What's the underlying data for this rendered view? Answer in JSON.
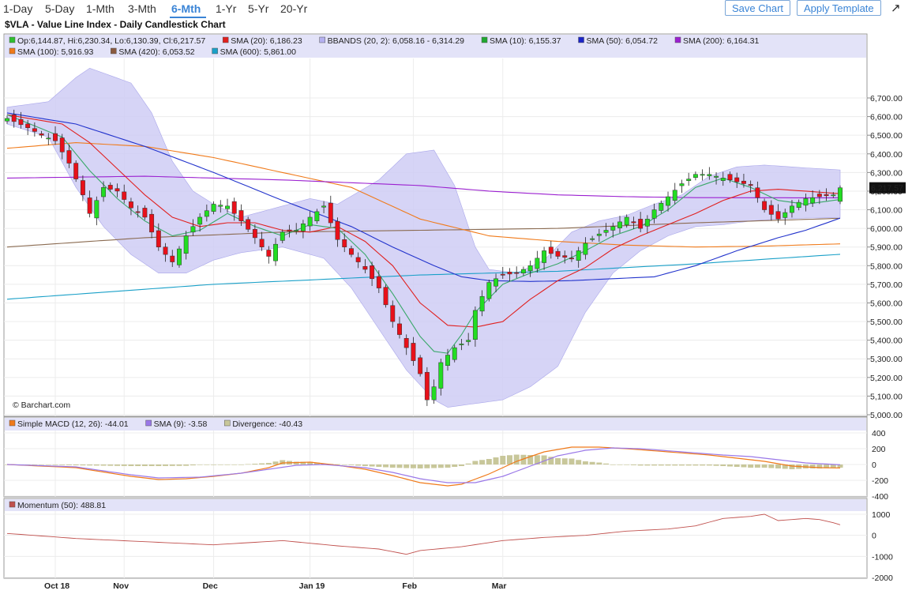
{
  "nav": {
    "periods": [
      "1-Day",
      "5-Day",
      "1-Mth",
      "3-Mth",
      "6-Mth",
      "1-Yr",
      "5-Yr",
      "20-Yr"
    ],
    "active": "6-Mth",
    "save_label": "Save Chart",
    "template_label": "Apply Template",
    "expand_glyph": "↗"
  },
  "title": "$VLA - Value Line Index - Daily Candlestick Chart",
  "copyright": "© Barchart.com",
  "legend": {
    "row1": [
      {
        "text": "Op:6,144.87, Hi:6,230.34, Lo:6,130.39, Cl:6,217.57",
        "color": "#2fbf2f"
      },
      {
        "text": "SMA (20): 6,186.23",
        "color": "#e0201f"
      },
      {
        "text": "BBANDS (20, 2): 6,058.16 - 6,314.29",
        "color": "#b4b0f0"
      },
      {
        "text": "SMA (10): 6,155.37",
        "color": "#20a830"
      },
      {
        "text": "SMA (50): 6,054.72",
        "color": "#1b24c8"
      },
      {
        "text": "SMA (200): 6,164.31",
        "color": "#9b20d0"
      }
    ],
    "row2": [
      {
        "text": "SMA (100): 5,916.93",
        "color": "#f07a1a"
      },
      {
        "text": "SMA (420): 6,053.52",
        "color": "#8a5a40"
      },
      {
        "text": "SMA (600): 5,861.00",
        "color": "#1aa0c8"
      }
    ]
  },
  "macd_legend": [
    {
      "text": "Simple MACD (12, 26): -44.01",
      "color": "#f07a1a"
    },
    {
      "text": "SMA (9): -3.58",
      "color": "#9a78e8"
    },
    {
      "text": "Divergence: -40.43",
      "color": "#c8c79a"
    }
  ],
  "momentum_legend": [
    {
      "text": "Momentum (50): 488.81",
      "color": "#c0504d"
    }
  ],
  "last_price_tag": "6,217.57",
  "colors": {
    "up": "#22dd22",
    "down": "#e8101a",
    "bband_fill": "#cfcdf5",
    "sma20": "#e0201f",
    "sma10": "#3aa86a",
    "sma50": "#2233cc",
    "sma200": "#9b20d0",
    "sma100": "#f07a1a",
    "sma420": "#8a6a50",
    "sma600": "#1aa0c8",
    "macd": "#f07a1a",
    "macd_signal": "#9a78e8",
    "divergence": "#c8c79a",
    "momentum": "#c0504d"
  },
  "chart_data": {
    "type": "candlestick",
    "price_axis": {
      "ticks": [
        5000,
        5100,
        5200,
        5300,
        5400,
        5500,
        5600,
        5700,
        5800,
        5900,
        6000,
        6100,
        6200,
        6300,
        6400,
        6500,
        6600,
        6700
      ],
      "ylim": [
        5000,
        6700
      ]
    },
    "macd_axis": {
      "ticks": [
        400,
        200,
        0,
        -200,
        -400
      ],
      "ylim": [
        -400,
        400
      ]
    },
    "momentum_axis": {
      "ticks": [
        1000,
        0,
        -1000,
        -2000
      ],
      "ylim": [
        -2000,
        1000
      ]
    },
    "month_labels": [
      {
        "label": "Oct 18",
        "index": 7
      },
      {
        "label": "Nov",
        "index": 17
      },
      {
        "label": "Dec",
        "index": 30
      },
      {
        "label": "Jan 19",
        "index": 44
      },
      {
        "label": "Feb",
        "index": 59
      },
      {
        "label": "Mar",
        "index": 72
      }
    ],
    "anchors": {
      "close": [
        [
          0,
          6590
        ],
        [
          3,
          6540
        ],
        [
          5,
          6500
        ],
        [
          7,
          6470
        ],
        [
          9,
          6350
        ],
        [
          11,
          6180
        ],
        [
          12,
          6080
        ],
        [
          14,
          6220
        ],
        [
          16,
          6200
        ],
        [
          18,
          6110
        ],
        [
          20,
          6060
        ],
        [
          22,
          5900
        ],
        [
          24,
          5820
        ],
        [
          26,
          5960
        ],
        [
          28,
          6060
        ],
        [
          30,
          6130
        ],
        [
          32,
          6120
        ],
        [
          34,
          6040
        ],
        [
          36,
          5950
        ],
        [
          38,
          5850
        ],
        [
          40,
          5980
        ],
        [
          42,
          5990
        ],
        [
          44,
          6060
        ],
        [
          46,
          6120
        ],
        [
          48,
          5940
        ],
        [
          50,
          5860
        ],
        [
          52,
          5780
        ],
        [
          54,
          5680
        ],
        [
          56,
          5500
        ],
        [
          58,
          5360
        ],
        [
          60,
          5220
        ],
        [
          61,
          5080
        ],
        [
          62,
          5150
        ],
        [
          63,
          5280
        ],
        [
          65,
          5360
        ],
        [
          67,
          5400
        ],
        [
          68,
          5560
        ],
        [
          70,
          5710
        ],
        [
          72,
          5750
        ],
        [
          74,
          5760
        ],
        [
          76,
          5800
        ],
        [
          78,
          5880
        ],
        [
          80,
          5850
        ],
        [
          82,
          5840
        ],
        [
          84,
          5920
        ],
        [
          86,
          5970
        ],
        [
          88,
          6010
        ],
        [
          90,
          6060
        ],
        [
          92,
          6000
        ],
        [
          94,
          6100
        ],
        [
          96,
          6170
        ],
        [
          98,
          6240
        ],
        [
          100,
          6290
        ],
        [
          102,
          6290
        ],
        [
          104,
          6270
        ],
        [
          106,
          6250
        ],
        [
          108,
          6230
        ],
        [
          110,
          6100
        ],
        [
          112,
          6050
        ],
        [
          114,
          6120
        ],
        [
          116,
          6160
        ],
        [
          118,
          6170
        ],
        [
          120,
          6180
        ],
        [
          121,
          6218
        ]
      ],
      "sma10": [
        [
          0,
          6610
        ],
        [
          8,
          6490
        ],
        [
          12,
          6310
        ],
        [
          16,
          6160
        ],
        [
          20,
          6040
        ],
        [
          24,
          5960
        ],
        [
          28,
          5990
        ],
        [
          32,
          6080
        ],
        [
          36,
          6010
        ],
        [
          40,
          5960
        ],
        [
          44,
          6020
        ],
        [
          48,
          6000
        ],
        [
          52,
          5860
        ],
        [
          56,
          5650
        ],
        [
          60,
          5420
        ],
        [
          62,
          5340
        ],
        [
          64,
          5330
        ],
        [
          66,
          5430
        ],
        [
          68,
          5550
        ],
        [
          72,
          5700
        ],
        [
          76,
          5760
        ],
        [
          80,
          5810
        ],
        [
          84,
          5880
        ],
        [
          88,
          5960
        ],
        [
          92,
          6010
        ],
        [
          96,
          6100
        ],
        [
          100,
          6220
        ],
        [
          104,
          6270
        ],
        [
          108,
          6220
        ],
        [
          112,
          6150
        ],
        [
          116,
          6130
        ],
        [
          120,
          6150
        ],
        [
          121,
          6155
        ]
      ],
      "sma20": [
        [
          0,
          6610
        ],
        [
          8,
          6560
        ],
        [
          12,
          6460
        ],
        [
          16,
          6320
        ],
        [
          20,
          6180
        ],
        [
          24,
          6060
        ],
        [
          28,
          6010
        ],
        [
          32,
          6030
        ],
        [
          36,
          6030
        ],
        [
          40,
          5990
        ],
        [
          44,
          5980
        ],
        [
          48,
          6010
        ],
        [
          52,
          5930
        ],
        [
          56,
          5800
        ],
        [
          60,
          5600
        ],
        [
          64,
          5480
        ],
        [
          68,
          5470
        ],
        [
          72,
          5500
        ],
        [
          76,
          5620
        ],
        [
          80,
          5720
        ],
        [
          84,
          5790
        ],
        [
          88,
          5890
        ],
        [
          92,
          5960
        ],
        [
          96,
          6020
        ],
        [
          100,
          6080
        ],
        [
          104,
          6150
        ],
        [
          108,
          6200
        ],
        [
          112,
          6210
        ],
        [
          116,
          6200
        ],
        [
          121,
          6186
        ]
      ],
      "sma50": [
        [
          0,
          6620
        ],
        [
          10,
          6560
        ],
        [
          20,
          6440
        ],
        [
          30,
          6300
        ],
        [
          40,
          6150
        ],
        [
          50,
          6010
        ],
        [
          56,
          5900
        ],
        [
          62,
          5800
        ],
        [
          66,
          5740
        ],
        [
          70,
          5720
        ],
        [
          76,
          5715
        ],
        [
          82,
          5720
        ],
        [
          88,
          5730
        ],
        [
          94,
          5740
        ],
        [
          100,
          5800
        ],
        [
          106,
          5880
        ],
        [
          112,
          5950
        ],
        [
          116,
          5990
        ],
        [
          121,
          6055
        ]
      ],
      "sma100": [
        [
          0,
          6430
        ],
        [
          10,
          6460
        ],
        [
          20,
          6440
        ],
        [
          30,
          6380
        ],
        [
          40,
          6300
        ],
        [
          50,
          6220
        ],
        [
          60,
          6050
        ],
        [
          70,
          5960
        ],
        [
          80,
          5930
        ],
        [
          90,
          5910
        ],
        [
          100,
          5900
        ],
        [
          110,
          5905
        ],
        [
          121,
          5917
        ]
      ],
      "sma200": [
        [
          0,
          6270
        ],
        [
          20,
          6280
        ],
        [
          40,
          6260
        ],
        [
          60,
          6230
        ],
        [
          70,
          6200
        ],
        [
          80,
          6180
        ],
        [
          90,
          6170
        ],
        [
          100,
          6165
        ],
        [
          121,
          6164
        ]
      ],
      "sma420": [
        [
          0,
          5900
        ],
        [
          20,
          5950
        ],
        [
          40,
          5980
        ],
        [
          60,
          5990
        ],
        [
          80,
          6000
        ],
        [
          100,
          6030
        ],
        [
          121,
          6054
        ]
      ],
      "sma600": [
        [
          0,
          5620
        ],
        [
          30,
          5700
        ],
        [
          60,
          5750
        ],
        [
          80,
          5770
        ],
        [
          100,
          5810
        ],
        [
          121,
          5861
        ]
      ],
      "bb_upper": [
        [
          0,
          6650
        ],
        [
          6,
          6680
        ],
        [
          10,
          6810
        ],
        [
          12,
          6860
        ],
        [
          15,
          6820
        ],
        [
          18,
          6780
        ],
        [
          21,
          6620
        ],
        [
          24,
          6360
        ],
        [
          27,
          6200
        ],
        [
          30,
          6130
        ],
        [
          34,
          6060
        ],
        [
          40,
          6120
        ],
        [
          44,
          6160
        ],
        [
          48,
          6130
        ],
        [
          54,
          6260
        ],
        [
          58,
          6400
        ],
        [
          62,
          6420
        ],
        [
          65,
          6230
        ],
        [
          68,
          5900
        ],
        [
          70,
          5780
        ],
        [
          74,
          5760
        ],
        [
          78,
          5830
        ],
        [
          82,
          5980
        ],
        [
          86,
          6040
        ],
        [
          90,
          6070
        ],
        [
          94,
          6130
        ],
        [
          98,
          6180
        ],
        [
          102,
          6280
        ],
        [
          106,
          6330
        ],
        [
          110,
          6340
        ],
        [
          114,
          6330
        ],
        [
          118,
          6320
        ],
        [
          121,
          6314
        ]
      ],
      "bb_lower": [
        [
          0,
          6560
        ],
        [
          6,
          6490
        ],
        [
          10,
          6220
        ],
        [
          14,
          6010
        ],
        [
          18,
          5860
        ],
        [
          22,
          5760
        ],
        [
          26,
          5760
        ],
        [
          30,
          5830
        ],
        [
          34,
          5870
        ],
        [
          40,
          5900
        ],
        [
          46,
          5840
        ],
        [
          50,
          5680
        ],
        [
          54,
          5460
        ],
        [
          58,
          5240
        ],
        [
          62,
          5080
        ],
        [
          64,
          5040
        ],
        [
          68,
          5060
        ],
        [
          72,
          5080
        ],
        [
          76,
          5150
        ],
        [
          80,
          5260
        ],
        [
          84,
          5550
        ],
        [
          88,
          5760
        ],
        [
          92,
          5880
        ],
        [
          96,
          5960
        ],
        [
          100,
          6010
        ],
        [
          104,
          6020
        ],
        [
          108,
          6040
        ],
        [
          112,
          6050
        ],
        [
          116,
          6055
        ],
        [
          121,
          6058
        ]
      ],
      "macd": [
        [
          0,
          0
        ],
        [
          10,
          -40
        ],
        [
          18,
          -150
        ],
        [
          22,
          -190
        ],
        [
          26,
          -180
        ],
        [
          30,
          -150
        ],
        [
          34,
          -110
        ],
        [
          38,
          -40
        ],
        [
          40,
          20
        ],
        [
          44,
          30
        ],
        [
          48,
          -10
        ],
        [
          52,
          -60
        ],
        [
          56,
          -140
        ],
        [
          60,
          -230
        ],
        [
          64,
          -270
        ],
        [
          66,
          -250
        ],
        [
          70,
          -120
        ],
        [
          74,
          40
        ],
        [
          78,
          160
        ],
        [
          82,
          220
        ],
        [
          86,
          220
        ],
        [
          90,
          200
        ],
        [
          96,
          160
        ],
        [
          102,
          120
        ],
        [
          106,
          80
        ],
        [
          110,
          40
        ],
        [
          114,
          -20
        ],
        [
          118,
          -40
        ],
        [
          121,
          -44
        ]
      ],
      "macd_signal": [
        [
          0,
          0
        ],
        [
          10,
          -30
        ],
        [
          18,
          -130
        ],
        [
          22,
          -170
        ],
        [
          28,
          -160
        ],
        [
          34,
          -110
        ],
        [
          38,
          -60
        ],
        [
          42,
          -10
        ],
        [
          46,
          0
        ],
        [
          52,
          -40
        ],
        [
          56,
          -100
        ],
        [
          60,
          -180
        ],
        [
          64,
          -230
        ],
        [
          68,
          -230
        ],
        [
          72,
          -150
        ],
        [
          76,
          -20
        ],
        [
          80,
          110
        ],
        [
          84,
          180
        ],
        [
          88,
          210
        ],
        [
          92,
          200
        ],
        [
          98,
          160
        ],
        [
          104,
          120
        ],
        [
          108,
          100
        ],
        [
          112,
          60
        ],
        [
          116,
          20
        ],
        [
          121,
          -4
        ]
      ],
      "momentum": [
        [
          0,
          90
        ],
        [
          10,
          -150
        ],
        [
          20,
          -300
        ],
        [
          30,
          -450
        ],
        [
          40,
          -250
        ],
        [
          48,
          -500
        ],
        [
          54,
          -650
        ],
        [
          58,
          -900
        ],
        [
          60,
          -720
        ],
        [
          66,
          -540
        ],
        [
          72,
          -250
        ],
        [
          78,
          -100
        ],
        [
          84,
          0
        ],
        [
          90,
          200
        ],
        [
          96,
          300
        ],
        [
          100,
          450
        ],
        [
          104,
          800
        ],
        [
          108,
          900
        ],
        [
          110,
          1000
        ],
        [
          112,
          700
        ],
        [
          116,
          800
        ],
        [
          118,
          750
        ],
        [
          120,
          600
        ],
        [
          121,
          500
        ]
      ]
    }
  }
}
